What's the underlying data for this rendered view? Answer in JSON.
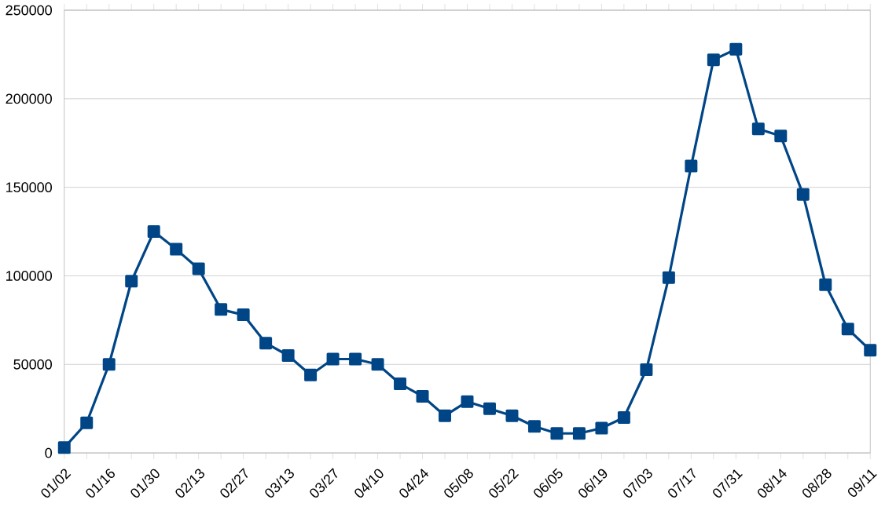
{
  "chart_data": {
    "type": "line",
    "categories": [
      "01/02",
      null,
      "01/16",
      null,
      "01/30",
      null,
      "02/13",
      null,
      "02/27",
      null,
      "03/13",
      null,
      "03/27",
      null,
      "04/10",
      null,
      "04/24",
      null,
      "05/08",
      null,
      "05/22",
      null,
      "06/05",
      null,
      "06/19",
      null,
      "07/03",
      null,
      "07/17",
      null,
      "07/31",
      null,
      "08/14",
      null,
      "08/28",
      null,
      "09/11"
    ],
    "series": [
      {
        "color": "#004586",
        "values": [
          3000,
          17000,
          50000,
          97000,
          125000,
          115000,
          104000,
          81000,
          78000,
          62000,
          55000,
          44000,
          53000,
          53000,
          50000,
          39000,
          32000,
          21000,
          29000,
          25000,
          21000,
          15000,
          11000,
          11000,
          14000,
          20000,
          47000,
          99000,
          162000,
          222000,
          228000,
          183000,
          179000,
          146000,
          95000,
          70000,
          58000
        ]
      }
    ],
    "ylim": [
      0,
      250000
    ],
    "yticks": [
      0,
      50000,
      100000,
      150000,
      200000,
      250000
    ],
    "grid": "y",
    "marker": "square",
    "line_style": "solid"
  }
}
